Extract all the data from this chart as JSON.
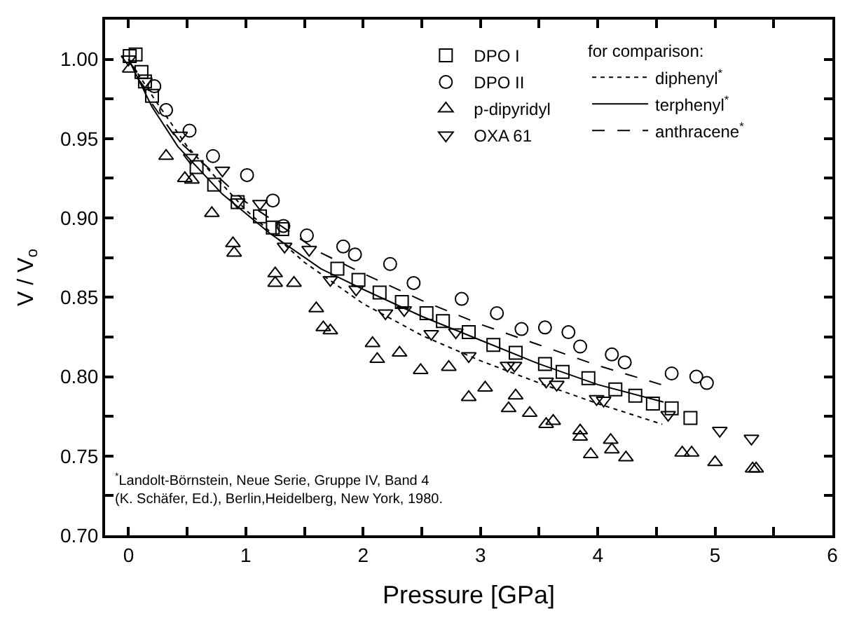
{
  "chart_data": {
    "type": "scatter",
    "xlabel": "Pressure [GPa]",
    "ylabel": "V / V$_{o}$",
    "legend_title": "for comparison:",
    "legend": "top right",
    "xlim": [
      -0.2,
      6
    ],
    "ylim": [
      0.7,
      1.025
    ],
    "xticks": [
      0,
      {
        "value": 0.5,
        "label": null
      },
      1,
      {
        "value": 1.5,
        "label": null
      },
      2,
      {
        "value": 2.5,
        "label": null
      },
      3,
      {
        "value": 3.5,
        "label": null
      },
      4,
      {
        "value": 4.5,
        "label": null
      },
      5,
      {
        "value": 5.5,
        "label": null
      },
      6
    ],
    "yticks": [
      {
        "value": 0.7,
        "label": "0.70"
      },
      {
        "value": 0.725,
        "label": null
      },
      {
        "value": 0.75,
        "label": "0.75"
      },
      {
        "value": 0.775,
        "label": null
      },
      {
        "value": 0.8,
        "label": "0.80"
      },
      {
        "value": 0.825,
        "label": null
      },
      {
        "value": 0.85,
        "label": "0.85"
      },
      {
        "value": 0.875,
        "label": null
      },
      {
        "value": 0.9,
        "label": "0.90"
      },
      {
        "value": 0.925,
        "label": null
      },
      {
        "value": 0.95,
        "label": "0.95"
      },
      {
        "value": 0.975,
        "label": null
      },
      {
        "value": 1.0,
        "label": "1.00"
      }
    ],
    "annotations": [
      "$^{*}$Landolt-Börnstein, Neue Serie, Gruppe IV, Band 4\n(K. Schäfer, Ed.), Berlin,Heidelberg, New York, 1980."
    ],
    "series": [
      {
        "name": "DPO I",
        "marker": "square",
        "color": "#000000",
        "x": [
          0.01,
          0.06,
          0.11,
          0.14,
          0.2,
          0.58,
          0.73,
          0.93,
          1.12,
          1.23,
          1.31,
          1.78,
          1.96,
          2.14,
          2.33,
          2.54,
          2.68,
          2.9,
          3.11,
          3.3,
          3.55,
          3.7,
          3.92,
          4.15,
          4.32,
          4.47,
          4.63,
          4.79
        ],
        "values": [
          1.002,
          1.003,
          0.992,
          0.986,
          0.977,
          0.932,
          0.921,
          0.91,
          0.901,
          0.894,
          0.893,
          0.868,
          0.861,
          0.853,
          0.847,
          0.84,
          0.835,
          0.828,
          0.82,
          0.815,
          0.808,
          0.803,
          0.799,
          0.792,
          0.788,
          0.783,
          0.78,
          0.774
        ]
      },
      {
        "name": "DPO II",
        "marker": "circle",
        "color": "#000000",
        "x": [
          0.22,
          0.32,
          0.52,
          0.72,
          1.01,
          1.23,
          1.32,
          1.52,
          1.83,
          1.93,
          2.23,
          2.43,
          2.84,
          3.14,
          3.35,
          3.55,
          3.75,
          3.85,
          4.12,
          4.23,
          4.63,
          4.84,
          4.93
        ],
        "values": [
          0.983,
          0.968,
          0.955,
          0.939,
          0.927,
          0.911,
          0.895,
          0.889,
          0.882,
          0.877,
          0.871,
          0.859,
          0.849,
          0.84,
          0.83,
          0.831,
          0.828,
          0.819,
          0.814,
          0.809,
          0.802,
          0.8,
          0.796
        ]
      },
      {
        "name": "p-dipyridyl",
        "marker": "triangle",
        "color": "#000000",
        "x": [
          0.01,
          0.32,
          0.48,
          0.54,
          0.71,
          0.89,
          0.9,
          1.25,
          1.25,
          1.41,
          1.6,
          1.66,
          1.72,
          2.08,
          2.12,
          2.31,
          2.49,
          2.73,
          2.9,
          3.04,
          3.3,
          3.24,
          3.42,
          3.56,
          3.62,
          3.85,
          3.85,
          3.94,
          4.11,
          4.12,
          4.24,
          4.72,
          4.8,
          5.0,
          5.32,
          5.35
        ],
        "values": [
          0.994,
          0.939,
          0.925,
          0.924,
          0.903,
          0.884,
          0.878,
          0.865,
          0.859,
          0.859,
          0.843,
          0.831,
          0.829,
          0.821,
          0.811,
          0.815,
          0.804,
          0.806,
          0.787,
          0.793,
          0.788,
          0.78,
          0.777,
          0.77,
          0.772,
          0.766,
          0.762,
          0.751,
          0.76,
          0.754,
          0.749,
          0.752,
          0.752,
          0.746,
          0.742,
          0.742
        ]
      },
      {
        "name": "OXA 61",
        "marker": "triangle-down",
        "color": "#000000",
        "x": [
          0.0,
          0.14,
          0.44,
          0.53,
          0.8,
          0.93,
          1.12,
          1.33,
          1.54,
          1.72,
          1.94,
          2.19,
          2.35,
          2.58,
          2.79,
          2.9,
          3.23,
          3.29,
          3.56,
          3.65,
          3.99,
          4.05,
          4.6,
          5.04,
          5.31
        ],
        "values": [
          1.0,
          0.986,
          0.952,
          0.938,
          0.93,
          0.91,
          0.909,
          0.882,
          0.88,
          0.861,
          0.855,
          0.84,
          0.842,
          0.827,
          0.828,
          0.813,
          0.807,
          0.807,
          0.797,
          0.795,
          0.786,
          0.785,
          0.776,
          0.766,
          0.761
        ]
      },
      {
        "name": "diphenyl$^{*}$",
        "type": "line",
        "line_style": "dotted",
        "color": "#000000",
        "x": [
          0,
          0.22,
          0.5,
          1.0,
          1.5,
          2.0,
          2.5,
          3.0,
          3.5,
          4.0,
          4.55
        ],
        "values": [
          1.0,
          0.975,
          0.945,
          0.905,
          0.872,
          0.846,
          0.826,
          0.81,
          0.796,
          0.783,
          0.77
        ]
      },
      {
        "name": "terphenyl$^{*}$",
        "type": "line",
        "line_style": "solid",
        "color": "#000000",
        "x": [
          0,
          0.2,
          0.42,
          0.8,
          1.21,
          1.64,
          2.0,
          2.5,
          3.0,
          3.5,
          4.0,
          4.56
        ],
        "values": [
          1.0,
          0.97,
          0.945,
          0.915,
          0.89,
          0.868,
          0.855,
          0.838,
          0.823,
          0.808,
          0.795,
          0.784
        ]
      },
      {
        "name": "anthracene$^{*}$",
        "type": "line",
        "line_style": "dashed",
        "color": "#000000",
        "x": [
          0,
          0.2,
          0.42,
          1.0,
          1.64,
          2.0,
          2.5,
          3.0,
          3.5,
          4.0,
          4.54
        ],
        "values": [
          1.0,
          0.972,
          0.949,
          0.91,
          0.878,
          0.865,
          0.848,
          0.833,
          0.82,
          0.807,
          0.795
        ]
      }
    ]
  }
}
